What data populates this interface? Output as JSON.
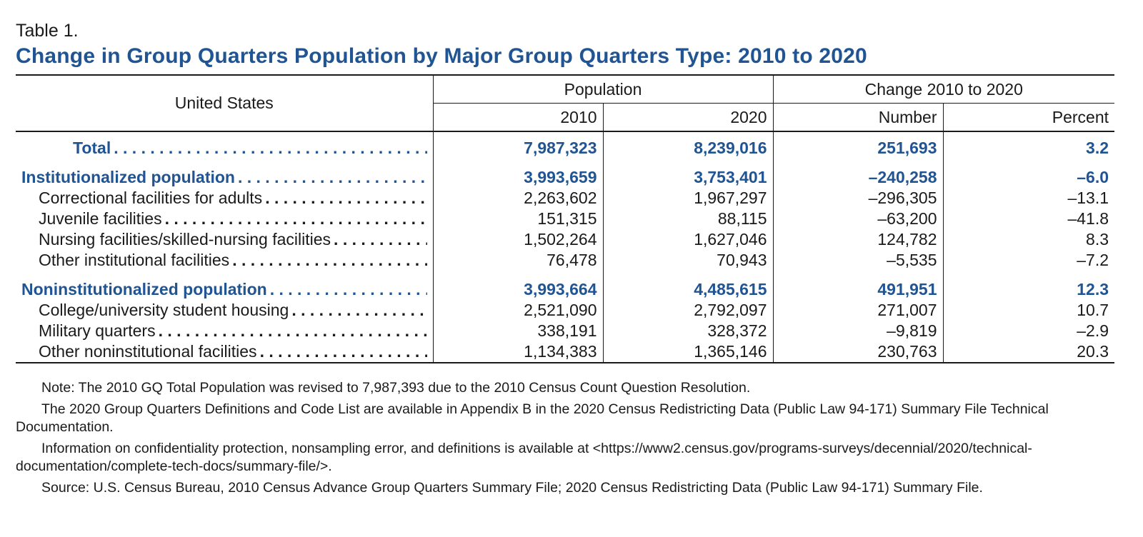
{
  "table_label": "Table 1.",
  "title": "Change in Group Quarters Population by Major Group Quarters Type: 2010 to 2020",
  "header": {
    "geography": "United States",
    "group_population": "Population",
    "group_change": "Change 2010 to 2020",
    "col_2010": "2010",
    "col_2020": "2020",
    "col_number": "Number",
    "col_percent": "Percent"
  },
  "rows": [
    {
      "label": "Total",
      "v2010": "7,987,323",
      "v2020": "8,239,016",
      "number": "251,693",
      "percent": "3.2"
    },
    {
      "label": "Institutionalized population",
      "v2010": "3,993,659",
      "v2020": "3,753,401",
      "number": "–240,258",
      "percent": "–6.0"
    },
    {
      "label": "Correctional facilities for adults",
      "v2010": "2,263,602",
      "v2020": "1,967,297",
      "number": "–296,305",
      "percent": "–13.1"
    },
    {
      "label": "Juvenile facilities",
      "v2010": "151,315",
      "v2020": "88,115",
      "number": "–63,200",
      "percent": "–41.8"
    },
    {
      "label": "Nursing facilities/skilled-nursing facilities",
      "v2010": "1,502,264",
      "v2020": "1,627,046",
      "number": "124,782",
      "percent": "8.3"
    },
    {
      "label": "Other institutional facilities",
      "v2010": "76,478",
      "v2020": "70,943",
      "number": "–5,535",
      "percent": "–7.2"
    },
    {
      "label": "Noninstitutionalized population",
      "v2010": "3,993,664",
      "v2020": "4,485,615",
      "number": "491,951",
      "percent": "12.3"
    },
    {
      "label": "College/university student housing",
      "v2010": "2,521,090",
      "v2020": "2,792,097",
      "number": "271,007",
      "percent": "10.7"
    },
    {
      "label": "Military quarters",
      "v2010": "338,191",
      "v2020": "328,372",
      "number": "–9,819",
      "percent": "–2.9"
    },
    {
      "label": "Other noninstitutional facilities",
      "v2010": "1,134,383",
      "v2020": "1,365,146",
      "number": "230,763",
      "percent": "20.3"
    }
  ],
  "notes": [
    "Note: The 2010 GQ Total Population was revised to 7,987,393 due to the 2010 Census Count Question Resolution.",
    "The 2020 Group Quarters Definitions and Code List are available in Appendix B in the 2020 Census Redistricting Data (Public Law 94-171) Summary File Technical Documentation.",
    "Information on confidentiality protection, nonsampling error, and definitions is available at <https://www2.census.gov/programs-surveys/decennial/2020/technical-documentation/complete-tech-docs/summary-file/>.",
    "Source: U.S. Census Bureau, 2010 Census Advance Group Quarters Summary File; 2020 Census Redistricting Data (Public Law 94-171) Summary File."
  ],
  "colors": {
    "title": "#205493",
    "text": "#1a1a1a"
  }
}
